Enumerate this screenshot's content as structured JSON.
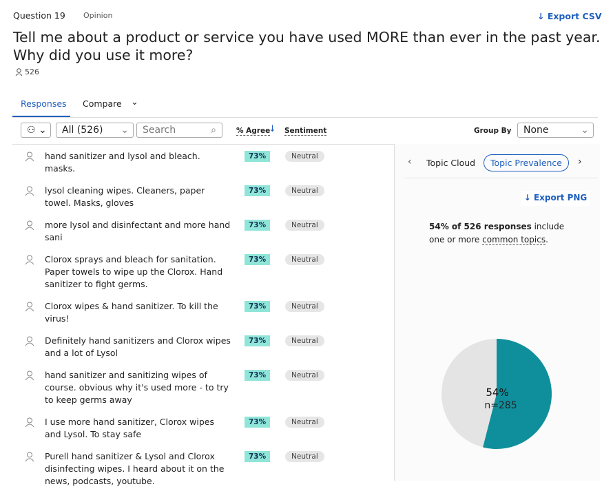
{
  "header": {
    "question": "Question 19",
    "kind": "Opinion",
    "export": "Export CSV",
    "title": "Tell me about a product or service you have used MORE than ever in the past year. Why did you use it more?",
    "respondents": "526"
  },
  "tabs": [
    "Responses",
    "Compare"
  ],
  "toolbar": {
    "filter": "All (526)",
    "search": "Search",
    "agree": "% Agree",
    "sentiment": "Sentiment",
    "group_by_label": "Group By",
    "group_by": "None"
  },
  "responses": [
    {
      "text": "hand sanitizer and lysol and bleach. masks.",
      "agree": "73%",
      "sentiment": "Neutral"
    },
    {
      "text": "lysol cleaning wipes. Cleaners, paper towel. Masks, gloves",
      "agree": "73%",
      "sentiment": "Neutral"
    },
    {
      "text": "more lysol and disinfectant and more hand sani",
      "agree": "73%",
      "sentiment": "Neutral"
    },
    {
      "text": "Clorox sprays and bleach for sanitation. Paper towels to wipe up the Clorox. Hand sanitizer to fight germs.",
      "agree": "73%",
      "sentiment": "Neutral"
    },
    {
      "text": "Clorox wipes & hand sanitizer. To kill the virus!",
      "agree": "73%",
      "sentiment": "Neutral"
    },
    {
      "text": "Definitely hand sanitizers and Clorox wipes and a lot of Lysol",
      "agree": "73%",
      "sentiment": "Neutral"
    },
    {
      "text": "hand sanitizer and sanitizing wipes of course. obvious why it's used more - to try to keep germs away",
      "agree": "73%",
      "sentiment": "Neutral"
    },
    {
      "text": "I use more hand sanitizer, Clorox wipes and Lysol. To stay safe",
      "agree": "73%",
      "sentiment": "Neutral"
    },
    {
      "text": "Purell hand sanitizer & Lysol and Clorox disinfecting wipes. I heard about it on the news, podcasts, youtube.",
      "agree": "73%",
      "sentiment": "Neutral"
    }
  ],
  "panel": {
    "tabs": [
      "Topic Cloud",
      "Topic Prevalence"
    ],
    "export": "Export PNG",
    "summary": [
      "54% of 526 responses",
      " include one or more ",
      "common topics",
      "."
    ],
    "pie": {
      "value": 54,
      "value_label": "54%",
      "n": "n=285"
    }
  }
}
